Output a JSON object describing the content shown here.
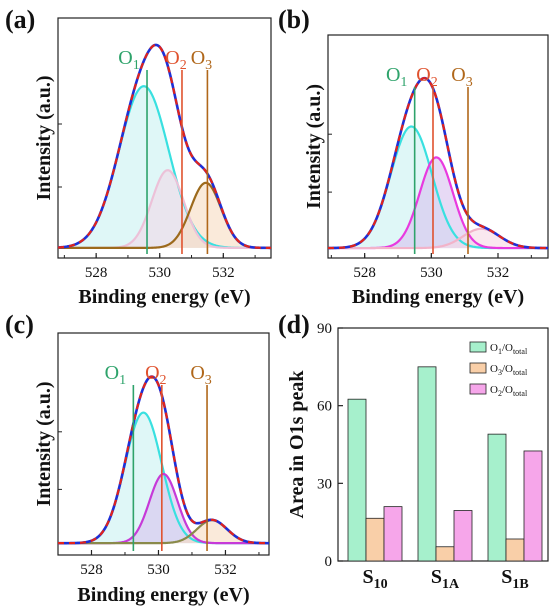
{
  "chart_data": [
    {
      "panel": "(a)",
      "type": "line",
      "xlabel": "Binding energy (eV)",
      "ylabel": "Intensity (a.u.)",
      "xlim": [
        526.8,
        533.5
      ],
      "x_reversed": false,
      "xticks": [
        528,
        530,
        532
      ],
      "peak_labels": [
        {
          "text": "O",
          "sub": "1",
          "x": 529.6,
          "color": "#2ea36b"
        },
        {
          "text": "O",
          "sub": "2",
          "x": 530.7,
          "color": "#e0522e"
        },
        {
          "text": "O",
          "sub": "3",
          "x": 531.5,
          "color": "#b0671a"
        }
      ],
      "peaks": [
        {
          "name": "O1",
          "center": 529.5,
          "height": 0.77,
          "width": 0.78,
          "line": "#39e0e0",
          "fill": "#c9f2f2"
        },
        {
          "name": "O2",
          "center": 530.25,
          "height": 0.37,
          "width": 0.5,
          "line": "#ecc1d8",
          "fill": "#f2d9e8"
        },
        {
          "name": "O3",
          "center": 531.45,
          "height": 0.31,
          "width": 0.48,
          "line": "#9c6a1c",
          "fill": "#f6dcc2"
        }
      ],
      "background": 0.01
    },
    {
      "panel": "(b)",
      "type": "line",
      "xlabel": "Binding energy (eV)",
      "ylabel": "Intensity (a.u.)",
      "xlim": [
        526.9,
        533.5
      ],
      "x_reversed": false,
      "xticks": [
        528,
        530,
        532
      ],
      "peak_labels": [
        {
          "text": "O",
          "sub": "1",
          "x": 529.5,
          "color": "#2ea36b"
        },
        {
          "text": "O",
          "sub": "2",
          "x": 530.05,
          "color": "#e0522e"
        },
        {
          "text": "O",
          "sub": "3",
          "x": 531.1,
          "color": "#b0671a"
        }
      ],
      "peaks": [
        {
          "name": "O1",
          "center": 529.4,
          "height": 0.63,
          "width": 0.62,
          "line": "#39e0e0",
          "fill": "#c9f2f2"
        },
        {
          "name": "O2",
          "center": 530.15,
          "height": 0.47,
          "width": 0.5,
          "line": "#e83adf",
          "fill": "#d7c2ee"
        },
        {
          "name": "O3",
          "center": 531.5,
          "height": 0.1,
          "width": 0.55,
          "line": "#f2b3c9",
          "fill": "#f6d8e4"
        }
      ],
      "background": 0.01
    },
    {
      "panel": "(c)",
      "type": "line",
      "xlabel": "Binding energy (eV)",
      "ylabel": "Intensity (a.u.)",
      "xlim": [
        527.0,
        533.3
      ],
      "x_reversed": false,
      "xticks": [
        528,
        530,
        532
      ],
      "peak_labels": [
        {
          "text": "O",
          "sub": "1",
          "x": 529.25,
          "color": "#2ea36b"
        },
        {
          "text": "O",
          "sub": "2",
          "x": 530.1,
          "color": "#e0522e"
        },
        {
          "text": "O",
          "sub": "3",
          "x": 531.45,
          "color": "#b0671a"
        }
      ],
      "peaks": [
        {
          "name": "O1",
          "center": 529.55,
          "height": 0.68,
          "width": 0.55,
          "line": "#39e0e0",
          "fill": "#c9f2f2"
        },
        {
          "name": "O2",
          "center": 530.15,
          "height": 0.36,
          "width": 0.42,
          "line": "#c63ad8",
          "fill": "#d7c2ee"
        },
        {
          "name": "O3",
          "center": 531.6,
          "height": 0.12,
          "width": 0.45,
          "line": "#8a8a4a",
          "fill": "#f6dcc2"
        }
      ],
      "background": 0.02
    },
    {
      "panel": "(d)",
      "type": "bar",
      "ylabel": "Area in O1s peak",
      "ylim": [
        0,
        90
      ],
      "yticks": [
        0,
        30,
        60,
        90
      ],
      "categories": [
        {
          "main": "S",
          "sub": "10"
        },
        {
          "main": "S",
          "sub": "1A"
        },
        {
          "main": "S",
          "sub": "1B"
        }
      ],
      "series": [
        {
          "legend_main": "O",
          "legend_sub1": "1",
          "legend_mid": "/O",
          "legend_sub2": "total",
          "values": [
            62.5,
            75.0,
            49.0
          ],
          "color": "#a6f0cc"
        },
        {
          "legend_main": "O",
          "legend_sub1": "3",
          "legend_mid": "/O",
          "legend_sub2": "total",
          "values": [
            16.5,
            5.5,
            8.5
          ],
          "color": "#f9cfa8"
        },
        {
          "legend_main": "O",
          "legend_sub1": "2",
          "legend_mid": "/O",
          "legend_sub2": "total",
          "values": [
            21.0,
            19.5,
            42.5
          ],
          "color": "#f6a6ea"
        }
      ],
      "legend_position": "top-right"
    }
  ]
}
